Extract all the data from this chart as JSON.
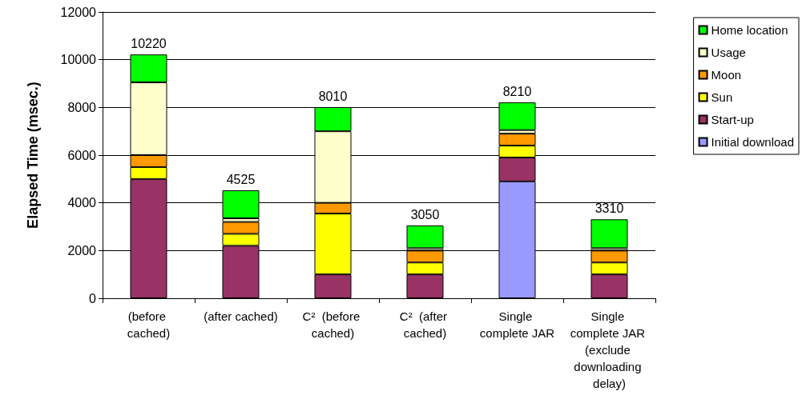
{
  "chart_data": {
    "type": "bar",
    "stacked": true,
    "ylabel": "Elapsed Time (msec.)",
    "categories": [
      "(before cached)",
      "(after cached)",
      "C²  (before cached)",
      "C²  (after cached)",
      "Single complete JAR",
      "Single complete JAR (exclude downloading delay)"
    ],
    "series": [
      {
        "name": "Initial download",
        "color": "#9999ff",
        "values": [
          null,
          null,
          null,
          null,
          4900,
          null
        ]
      },
      {
        "name": "Start-up",
        "color": "#993366",
        "values": [
          5000,
          2200,
          1000,
          1000,
          1000,
          1000
        ]
      },
      {
        "name": "Sun",
        "color": "#ffff00",
        "values": [
          500,
          500,
          2550,
          500,
          500,
          500
        ]
      },
      {
        "name": "Moon",
        "color": "#ff9900",
        "values": [
          500,
          500,
          450,
          500,
          500,
          500
        ]
      },
      {
        "name": "Usage",
        "color": "#ffffcc",
        "values": [
          3050,
          150,
          3000,
          100,
          150,
          100
        ]
      },
      {
        "name": "Home location",
        "color": "#00ff00",
        "values": [
          1170,
          1175,
          1010,
          950,
          1160,
          1210
        ]
      }
    ],
    "totals": [
      "10220",
      "4525",
      "8010",
      "3050",
      "8210",
      "3310"
    ],
    "ylim": [
      0,
      12000
    ],
    "yticks": [
      0,
      2000,
      4000,
      6000,
      8000,
      10000,
      12000
    ],
    "grid": "y",
    "legend": "right"
  }
}
